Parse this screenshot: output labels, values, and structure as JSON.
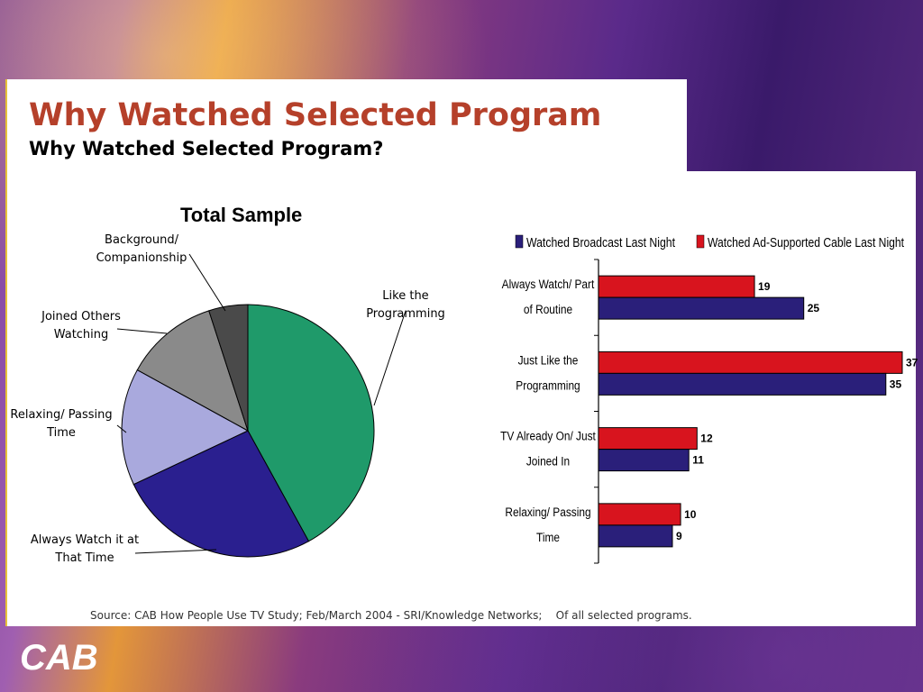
{
  "slide": {
    "title": "Why Watched Selected Program",
    "subtitle": "Why Watched Selected Program?",
    "source": "Source: CAB How People Use TV Study; Feb/March 2004 - SRI/Knowledge Networks;    Of all selected programs.",
    "logo_text": "CAB"
  },
  "chart_data": [
    {
      "type": "pie",
      "title": "Total Sample",
      "slices": [
        {
          "label": "Like the Programming",
          "value": 42,
          "color": "#1f9a6a"
        },
        {
          "label": "Always Watch it at That Time",
          "value": 26,
          "color": "#2a1f8f"
        },
        {
          "label": "Relaxing/ Passing Time",
          "value": 15,
          "color": "#a9a9dd"
        },
        {
          "label": "Joined Others Watching",
          "value": 12,
          "color": "#8a8a8a"
        },
        {
          "label": "Background/ Companionship",
          "value": 5,
          "color": "#4a4a4a"
        }
      ]
    },
    {
      "type": "bar",
      "orientation": "horizontal",
      "categories": [
        "Always Watch/ Part of Routine",
        "Just Like the Programming",
        "TV Already On/ Just Joined In",
        "Relaxing/ Passing Time"
      ],
      "series": [
        {
          "name": "Watched Ad-Supported Cable Last Night",
          "color": "#d8141e",
          "values": [
            19,
            37,
            12,
            10
          ]
        },
        {
          "name": "Watched Broadcast Last Night",
          "color": "#2a1f7a",
          "values": [
            25,
            35,
            11,
            9
          ]
        }
      ],
      "legend_order": [
        "Watched Broadcast Last Night",
        "Watched Ad-Supported Cable Last Night"
      ],
      "legend_position": "top",
      "xlim": [
        0,
        37
      ]
    }
  ]
}
